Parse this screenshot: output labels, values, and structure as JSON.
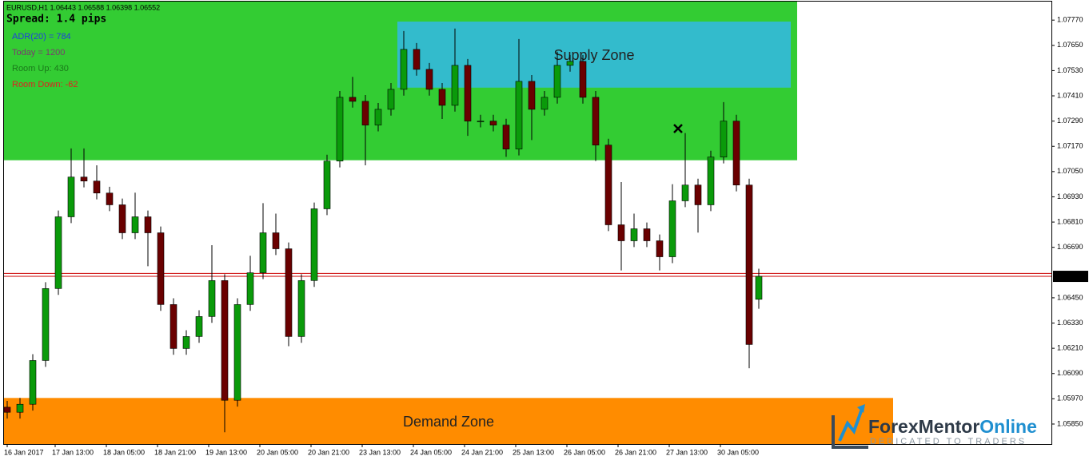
{
  "chart_data": {
    "type": "candlestick",
    "title": "EURUSD,H1  1.06443 1.06588 1.06398 1.06552",
    "spread": "Spread: 1.4 pips",
    "info": [
      {
        "text": "ADR(20) = 784",
        "color": "#1f3fdf"
      },
      {
        "text": "Today = 1200",
        "color": "#7a3b6e"
      },
      {
        "text": "Room Up: 430",
        "color": "#1a7a1a"
      },
      {
        "text": "Room Down: -62",
        "color": "#e02020"
      }
    ],
    "up_color": "#0a9a0a",
    "down_color": "#6a0000",
    "xlim": [
      -1,
      326.5
    ],
    "ylim": [
      1.05755,
      1.07858
    ],
    "yticks": [
      {
        "value": 1.0585,
        "label": "1.05850"
      },
      {
        "value": 1.0597,
        "label": "1.05970"
      },
      {
        "value": 1.0609,
        "label": "1.06090"
      },
      {
        "value": 1.0621,
        "label": "1.06210"
      },
      {
        "value": 1.0633,
        "label": "1.06330"
      },
      {
        "value": 1.0645,
        "label": "1.06450"
      },
      {
        "value": 1.0669,
        "label": "1.06690"
      },
      {
        "value": 1.0681,
        "label": "1.06810"
      },
      {
        "value": 1.0693,
        "label": "1.06930"
      },
      {
        "value": 1.0705,
        "label": "1.07050"
      },
      {
        "value": 1.0717,
        "label": "1.07170"
      },
      {
        "value": 1.0729,
        "label": "1.07290"
      },
      {
        "value": 1.0741,
        "label": "1.07410"
      },
      {
        "value": 1.0753,
        "label": "1.07530"
      },
      {
        "value": 1.0765,
        "label": "1.07650"
      },
      {
        "value": 1.0777,
        "label": "1.07770"
      }
    ],
    "xticks": [
      {
        "value": 0,
        "label": "16 Jan 2017"
      },
      {
        "value": 15,
        "label": "17 Jan 13:00"
      },
      {
        "value": 31,
        "label": "18 Jan 05:00"
      },
      {
        "value": 47,
        "label": "18 Jan 21:00"
      },
      {
        "value": 63,
        "label": "19 Jan 13:00"
      },
      {
        "value": 79,
        "label": "20 Jan 05:00"
      },
      {
        "value": 95,
        "label": "20 Jan 21:00"
      },
      {
        "value": 111,
        "label": "23 Jan 13:00"
      },
      {
        "value": 127,
        "label": "24 Jan 05:00"
      },
      {
        "value": 143,
        "label": "24 Jan 21:00"
      },
      {
        "value": 159,
        "label": "25 Jan 13:00"
      },
      {
        "value": 175,
        "label": "26 Jan 05:00"
      },
      {
        "value": 191,
        "label": "26 Jan 21:00"
      },
      {
        "value": 207,
        "label": "27 Jan 13:00"
      },
      {
        "value": 223,
        "label": "30 Jan 05:00"
      }
    ],
    "zones": [
      {
        "color": "#33cc33",
        "x": [
          -1,
          247
        ],
        "y": [
          1.07104,
          1.07858
        ]
      },
      {
        "label": "Supply Zone",
        "color": "#33bbcc",
        "x": [
          122,
          245
        ],
        "y": [
          1.07449,
          1.07763
        ]
      },
      {
        "label": "Demand Zone",
        "color": "#ff8c00",
        "x": [
          -1,
          277
        ],
        "y": [
          1.05755,
          1.05974
        ]
      }
    ],
    "price_lines": [
      1.06552,
      1.06566
    ],
    "price_line_color": "#cc0000",
    "x": [
      0,
      4,
      8,
      12,
      16,
      20,
      24,
      28,
      32,
      36,
      40,
      44,
      48,
      52,
      56,
      60,
      64,
      68,
      72,
      76,
      80,
      84,
      88,
      92,
      96,
      100,
      104,
      108,
      112,
      116,
      120,
      124,
      128,
      132,
      136,
      140,
      144,
      148,
      152,
      156,
      160,
      164,
      168,
      172,
      176,
      180,
      184,
      188,
      192,
      196,
      200,
      204,
      208,
      212,
      216,
      220,
      224,
      228,
      232,
      235
    ],
    "open": [
      1.0593,
      1.05906,
      1.05944,
      1.06152,
      1.06494,
      1.06835,
      1.07024,
      1.07005,
      1.06948,
      1.06892,
      1.06759,
      1.06835,
      1.06759,
      1.06418,
      1.06209,
      1.06266,
      1.06361,
      1.06532,
      1.05963,
      1.06418,
      1.06569,
      1.06759,
      1.06683,
      1.06266,
      1.06532,
      1.06873,
      1.071,
      1.07403,
      1.07384,
      1.07271,
      1.07346,
      1.07441,
      1.07631,
      1.07536,
      1.07441,
      1.07365,
      1.07555,
      1.0729,
      1.0729,
      1.07271,
      1.07157,
      1.07479,
      1.07346,
      1.07403,
      1.07555,
      1.07574,
      1.07403,
      1.07176,
      1.06797,
      1.06721,
      1.06778,
      1.06721,
      1.06645,
      1.06911,
      1.06986,
      1.06892,
      1.07119,
      1.0729,
      1.06986,
      1.06443
    ],
    "high": [
      1.0596,
      1.05974,
      1.06182,
      1.06524,
      1.06865,
      1.0716,
      1.0716,
      1.0708,
      1.06978,
      1.06922,
      1.0695,
      1.06865,
      1.06789,
      1.06448,
      1.06296,
      1.06391,
      1.067,
      1.06562,
      1.06448,
      1.0665,
      1.069,
      1.0685,
      1.06713,
      1.06562,
      1.06903,
      1.0713,
      1.07433,
      1.075,
      1.07414,
      1.07376,
      1.07471,
      1.07718,
      1.07661,
      1.07566,
      1.07471,
      1.0773,
      1.07585,
      1.0732,
      1.0732,
      1.07301,
      1.0768,
      1.07509,
      1.07433,
      1.0762,
      1.07604,
      1.07604,
      1.07433,
      1.07206,
      1.07,
      1.0685,
      1.06808,
      1.06751,
      1.0699,
      1.07233,
      1.07016,
      1.07149,
      1.0738,
      1.0732,
      1.07016,
      1.06588
    ],
    "low": [
      1.05876,
      1.05876,
      1.05914,
      1.06122,
      1.06464,
      1.06805,
      1.06975,
      1.06918,
      1.06862,
      1.06729,
      1.06729,
      1.066,
      1.06388,
      1.06179,
      1.06179,
      1.06236,
      1.06331,
      1.05811,
      1.05933,
      1.06388,
      1.06539,
      1.06653,
      1.0622,
      1.06236,
      1.06502,
      1.06843,
      1.0707,
      1.07354,
      1.0708,
      1.07241,
      1.07316,
      1.07411,
      1.07506,
      1.07411,
      1.073,
      1.07335,
      1.0722,
      1.0726,
      1.07241,
      1.0712,
      1.07127,
      1.072,
      1.07316,
      1.07373,
      1.07525,
      1.07373,
      1.071,
      1.06767,
      1.0658,
      1.06691,
      1.06691,
      1.0658,
      1.06615,
      1.06881,
      1.0676,
      1.06862,
      1.07089,
      1.06956,
      1.06115,
      1.06398
    ],
    "close": [
      1.05906,
      1.05944,
      1.06152,
      1.06494,
      1.06835,
      1.07024,
      1.07005,
      1.06948,
      1.06892,
      1.06759,
      1.06835,
      1.06759,
      1.06418,
      1.06209,
      1.06266,
      1.06361,
      1.06532,
      1.05963,
      1.06418,
      1.06569,
      1.06759,
      1.06683,
      1.06266,
      1.06532,
      1.06873,
      1.071,
      1.07403,
      1.07384,
      1.07271,
      1.07346,
      1.07441,
      1.07631,
      1.07536,
      1.07441,
      1.07365,
      1.07555,
      1.0729,
      1.0729,
      1.07271,
      1.07157,
      1.07479,
      1.07346,
      1.07403,
      1.07555,
      1.07574,
      1.07403,
      1.07176,
      1.06797,
      1.06721,
      1.06778,
      1.06721,
      1.06645,
      1.06911,
      1.06986,
      1.06892,
      1.07119,
      1.0729,
      1.06986,
      1.06228,
      1.06552
    ]
  },
  "logo": {
    "name_part1": "ForexMentor",
    "name_part2": "Online",
    "tagline": "DEDICATED TO TRADERS"
  }
}
